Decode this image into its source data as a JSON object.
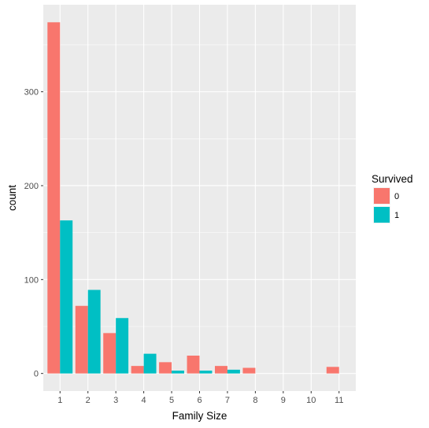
{
  "chart_data": {
    "type": "bar",
    "layout": "grouped",
    "categories": [
      "1",
      "2",
      "3",
      "4",
      "5",
      "6",
      "7",
      "8",
      "9",
      "10",
      "11"
    ],
    "series": [
      {
        "name": "0",
        "color": "#F8766D",
        "values": [
          374,
          72,
          43,
          8,
          12,
          19,
          8,
          6,
          0,
          0,
          7
        ]
      },
      {
        "name": "1",
        "color": "#00BFC4",
        "values": [
          163,
          89,
          59,
          21,
          3,
          3,
          4,
          0,
          0,
          0,
          0
        ]
      }
    ],
    "title": "",
    "xlabel": "Family Size",
    "ylabel": "count",
    "ylim": [
      -18.7,
      392.7
    ],
    "yticks": [
      0,
      100,
      200,
      300
    ],
    "legend_title": "Survived",
    "legend_position": "right",
    "grid": true,
    "panel_background": "#EBEBEB",
    "grid_color": "#FFFFFF"
  }
}
